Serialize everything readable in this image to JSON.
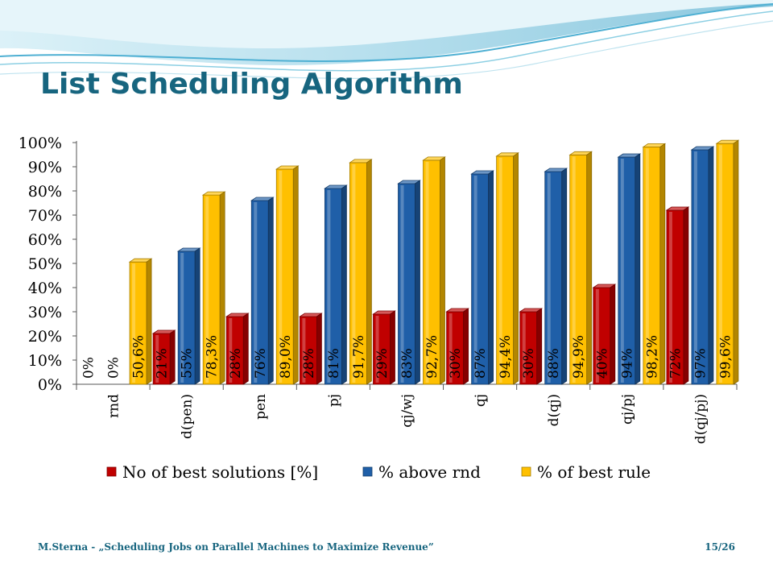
{
  "slide": {
    "title": "List Scheduling Algorithm",
    "footer": "M.Sterna - „Scheduling Jobs on Parallel Machines to Maximize Revenue”",
    "page": "15/26"
  },
  "colors": {
    "title": "#17657f",
    "red": "#c00000",
    "blue": "#1f5fa8",
    "yellow": "#ffc000"
  },
  "chart_data": {
    "type": "bar",
    "categories": [
      "rnd",
      "d(pen)",
      "pen",
      "pj",
      "qj/wj",
      "qj",
      "d(qj)",
      "qj/pj",
      "d(qj/pj)"
    ],
    "series": [
      {
        "name": "No of best solutions [%]",
        "color": "#c00000",
        "values": [
          0,
          21,
          28,
          28,
          29,
          30,
          30,
          40,
          72
        ],
        "labels": [
          "0%",
          "21%",
          "28%",
          "28%",
          "29%",
          "30%",
          "30%",
          "40%",
          "72%"
        ]
      },
      {
        "name": "% above rnd",
        "color": "#1f5fa8",
        "values": [
          0,
          55,
          76,
          81,
          83,
          87,
          88,
          94,
          97
        ],
        "labels": [
          "0%",
          "55%",
          "76%",
          "81%",
          "83%",
          "87%",
          "88%",
          "94%",
          "97%"
        ]
      },
      {
        "name": "% of best rule",
        "color": "#ffc000",
        "values": [
          50.6,
          78.3,
          89.0,
          91.7,
          92.7,
          94.4,
          94.9,
          98.2,
          99.6
        ],
        "labels": [
          "50,6%",
          "78,3%",
          "89,0%",
          "91,7%",
          "92,7%",
          "94,4%",
          "94,9%",
          "98,2%",
          "99,6%"
        ]
      }
    ],
    "y_ticks": [
      "0%",
      "10%",
      "20%",
      "30%",
      "40%",
      "50%",
      "60%",
      "70%",
      "80%",
      "90%",
      "100%"
    ],
    "ylim": [
      0,
      100
    ],
    "legend": "bottom",
    "grid": false
  }
}
